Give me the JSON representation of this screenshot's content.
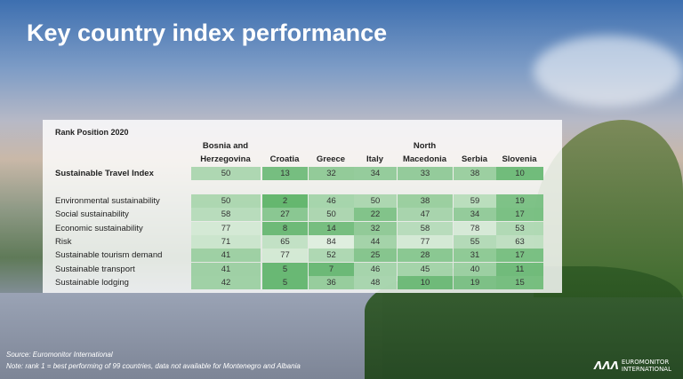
{
  "title": "Key country index performance",
  "table": {
    "caption": "Rank Position 2020",
    "columns": [
      [
        "Bosnia and",
        "Herzegovina"
      ],
      [
        "",
        "Croatia"
      ],
      [
        "",
        "Greece"
      ],
      [
        "",
        "Italy"
      ],
      [
        "North",
        "Macedonia"
      ],
      [
        "",
        "Serbia"
      ],
      [
        "",
        "Slovenia"
      ]
    ],
    "headline": {
      "label": "Sustainable Travel Index",
      "values": [
        50,
        13,
        32,
        34,
        33,
        38,
        10
      ]
    },
    "rows": [
      {
        "label": "Environmental sustainability",
        "values": [
          50,
          2,
          46,
          50,
          38,
          59,
          19
        ]
      },
      {
        "label": "Social sustainability",
        "values": [
          58,
          27,
          50,
          22,
          47,
          34,
          17
        ]
      },
      {
        "label": "Economic sustainability",
        "values": [
          77,
          8,
          14,
          32,
          58,
          78,
          53
        ]
      },
      {
        "label": "Risk",
        "values": [
          71,
          65,
          84,
          44,
          77,
          55,
          63
        ]
      },
      {
        "label": "Sustainable tourism demand",
        "values": [
          41,
          77,
          52,
          25,
          28,
          31,
          17
        ]
      },
      {
        "label": "Sustainable transport",
        "values": [
          41,
          5,
          7,
          46,
          45,
          40,
          11
        ]
      },
      {
        "label": "Sustainable lodging",
        "values": [
          42,
          5,
          36,
          48,
          10,
          19,
          15
        ]
      }
    ]
  },
  "footer": {
    "source": "Source: Euromonitor International",
    "note": "Note: rank 1 = best performing of 99 countries, data not available for Montenegro and Albania"
  },
  "logo": {
    "line1": "EUROMONITOR",
    "line2": "INTERNATIONAL"
  }
}
